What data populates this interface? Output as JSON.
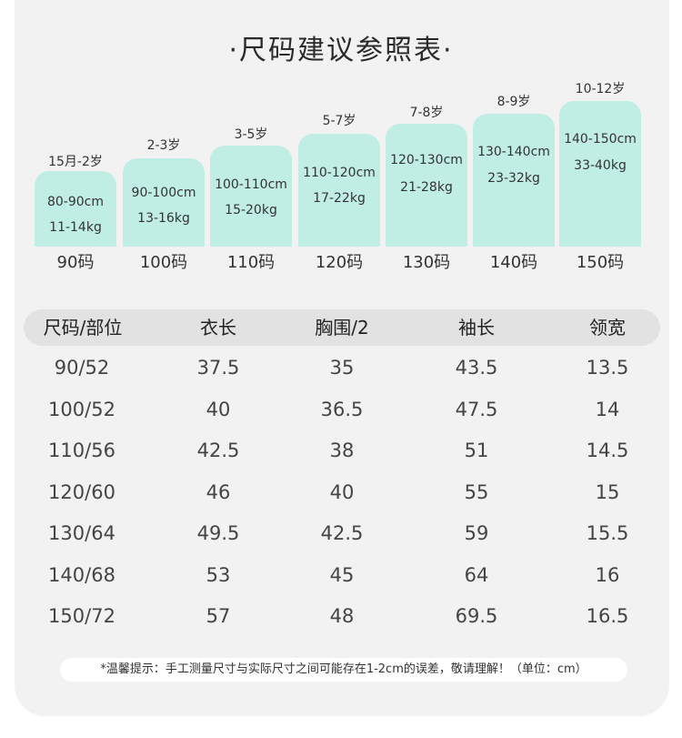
{
  "title": "·尺码建议参照表·",
  "sizes": [
    {
      "age": "15月-2岁",
      "height": "80-90cm",
      "weight": "11-14kg",
      "size": "90码"
    },
    {
      "age": "2-3岁",
      "height": "90-100cm",
      "weight": "13-16kg",
      "size": "100码"
    },
    {
      "age": "3-5岁",
      "height": "100-110cm",
      "weight": "15-20kg",
      "size": "110码"
    },
    {
      "age": "5-7岁",
      "height": "110-120cm",
      "weight": "17-22kg",
      "size": "120码"
    },
    {
      "age": "7-8岁",
      "height": "120-130cm",
      "weight": "21-28kg",
      "size": "130码"
    },
    {
      "age": "8-9岁",
      "height": "130-140cm",
      "weight": "23-32kg",
      "size": "140码"
    },
    {
      "age": "10-12岁",
      "height": "140-150cm",
      "weight": "33-40kg",
      "size": "150码"
    }
  ],
  "table": {
    "headers": [
      "尺码/部位",
      "衣长",
      "胸围/2",
      "袖长",
      "领宽"
    ],
    "rows": [
      [
        "90/52",
        "37.5",
        "35",
        "43.5",
        "13.5"
      ],
      [
        "100/52",
        "40",
        "36.5",
        "47.5",
        "14"
      ],
      [
        "110/56",
        "42.5",
        "38",
        "51",
        "14.5"
      ],
      [
        "120/60",
        "46",
        "40",
        "55",
        "15"
      ],
      [
        "130/64",
        "49.5",
        "42.5",
        "59",
        "15.5"
      ],
      [
        "140/68",
        "53",
        "45",
        "64",
        "16"
      ],
      [
        "150/72",
        "57",
        "48",
        "69.5",
        "16.5"
      ]
    ]
  },
  "note": "*温馨提示：手工测量尺寸与实际尺寸之间可能存在1-2cm的误差，敬请理解！（单位：cm）",
  "colors": {
    "bar": "#c0eee4",
    "card": "#f2f2f2",
    "header": "#e2e2e2"
  }
}
